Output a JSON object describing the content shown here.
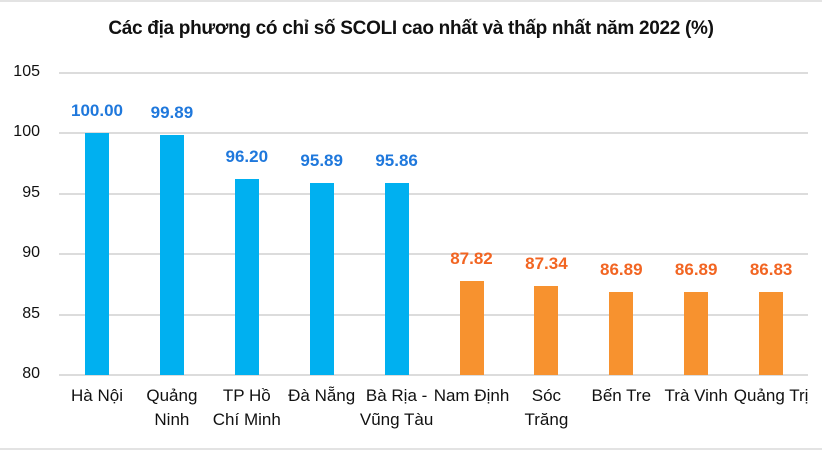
{
  "chart_data": {
    "type": "bar",
    "title": "Các địa phương có chỉ số SCOLI cao nhất và thấp nhất năm 2022 (%)",
    "xlabel": "",
    "ylabel": "",
    "ylim": [
      80,
      105
    ],
    "yticks": [
      "105",
      "100",
      "95",
      "90",
      "85",
      "80"
    ],
    "grid": true,
    "legend": null,
    "categories": [
      "Hà Nội",
      "Quảng Ninh",
      "TP Hồ Chí Minh",
      "Đà Nẵng",
      "Bà Rịa - Vũng Tàu",
      "Nam Định",
      "Sóc Trăng",
      "Bến Tre",
      "Trà Vinh",
      "Quảng Trị"
    ],
    "category_display": [
      "Hà Nội",
      "Quảng\nNinh",
      "TP Hồ\nChí Minh",
      "Đà Nẵng",
      "Bà Rịa -\nVũng Tàu",
      "Nam Định",
      "Sóc\nTrăng",
      "Bến Tre",
      "Trà Vinh",
      "Quảng Trị"
    ],
    "values": [
      100.0,
      99.89,
      96.2,
      95.89,
      95.86,
      87.82,
      87.34,
      86.89,
      86.89,
      86.83
    ],
    "value_labels": [
      "100.00",
      "99.89",
      "96.20",
      "95.89",
      "95.86",
      "87.82",
      "87.34",
      "86.89",
      "86.89",
      "86.83"
    ],
    "groups": [
      "highest",
      "highest",
      "highest",
      "highest",
      "highest",
      "lowest",
      "lowest",
      "lowest",
      "lowest",
      "lowest"
    ]
  },
  "colors": {
    "highest_bar": "#00B0F0",
    "highest_label": "#1F78DC",
    "lowest_bar": "#F7922F",
    "lowest_label": "#F26522"
  }
}
